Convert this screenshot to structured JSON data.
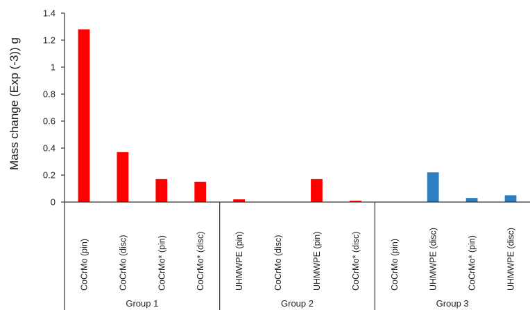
{
  "chart_data": {
    "type": "bar",
    "ylabel": "Mass change (Exp (-3)) g",
    "ylim": [
      0,
      1.4
    ],
    "yticks": [
      "0",
      "0.2",
      "0.4",
      "0.6",
      "0.8",
      "1",
      "1.2",
      "1.4"
    ],
    "grid": false,
    "groups": [
      {
        "label": "Group 1",
        "bars": [
          {
            "category": "CoCrMo (pin)",
            "value": 1.28,
            "color": "#ff0000"
          },
          {
            "category": "CoCrMo (disc)",
            "value": 0.37,
            "color": "#ff0000"
          },
          {
            "category": "CoCrMo* (pin)",
            "value": 0.17,
            "color": "#ff0000"
          },
          {
            "category": "CoCrMo* (disc)",
            "value": 0.15,
            "color": "#ff0000"
          }
        ]
      },
      {
        "label": "Group 2",
        "bars": [
          {
            "category": "UHMWPE (pin)",
            "value": 0.02,
            "color": "#ff0000"
          },
          {
            "category": "CoCrMo (disc)",
            "value": 0,
            "color": "#ff0000"
          },
          {
            "category": "UHMWPE (pin)",
            "value": 0.17,
            "color": "#ff0000"
          },
          {
            "category": "CoCrMo* (disc)",
            "value": 0.01,
            "color": "#ff0000"
          }
        ]
      },
      {
        "label": "Group 3",
        "bars": [
          {
            "category": "CoCrMo (pin)",
            "value": 0,
            "color": "#2e7fc1"
          },
          {
            "category": "UHMWPE (disc)",
            "value": 0.22,
            "color": "#2e7fc1"
          },
          {
            "category": "CoCrMo* (pin)",
            "value": 0.03,
            "color": "#2e7fc1"
          },
          {
            "category": "UHMWPE (disc)",
            "value": 0.05,
            "color": "#2e7fc1"
          }
        ]
      }
    ]
  }
}
